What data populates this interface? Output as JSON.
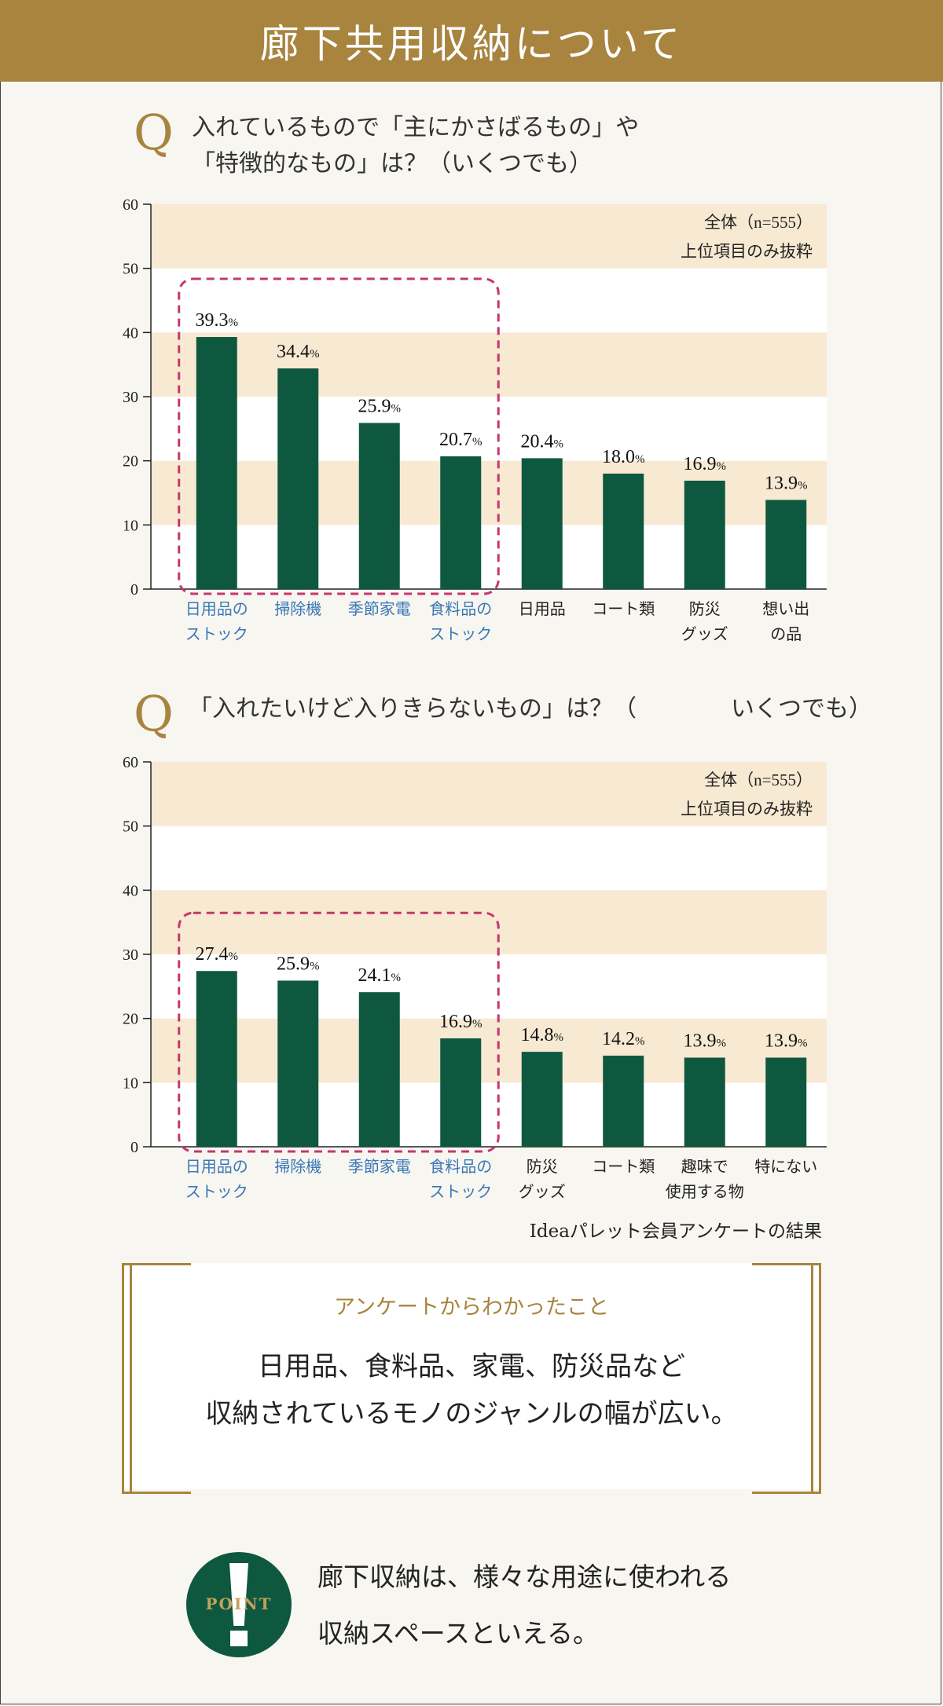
{
  "header": {
    "title": "廊下共用収納について"
  },
  "q1": {
    "mark": "Q",
    "line1": "入れているもので「主にかさばるもの」や",
    "line2": "「特徴的なもの」は？（いくつでも）"
  },
  "q2": {
    "mark": "Q",
    "text": "「入れたいけど入りきらないもの」は？（　　　　いくつでも）"
  },
  "chart_data": [
    {
      "type": "bar",
      "title": "入れているもので「主にかさばるもの」や「特徴的なもの」は？（いくつでも）",
      "categories": [
        "日用品の\nストック",
        "掃除機",
        "季節家電",
        "食料品の\nストック",
        "日用品",
        "コート類",
        "防災\nグッズ",
        "想い出\nの品"
      ],
      "values": [
        39.3,
        34.4,
        25.9,
        20.7,
        20.4,
        18.0,
        16.9,
        13.9
      ],
      "value_labels": [
        "39.3",
        "34.4",
        "25.9",
        "20.7",
        "20.4",
        "18.0",
        "16.9",
        "13.9"
      ],
      "unit": "%",
      "ylim": [
        0,
        60
      ],
      "yticks": [
        0,
        10,
        20,
        30,
        40,
        50,
        60
      ],
      "highlight": [
        0,
        1,
        2,
        3
      ],
      "notes": [
        "全体（n=555）",
        "上位項目のみ抜粋"
      ],
      "colors": {
        "bar": "#0f5840",
        "band": "#f8e9d2",
        "highlight_label": "#3a78b5",
        "dash": "#c4376f"
      }
    },
    {
      "type": "bar",
      "title": "「入れたいけど入りきらないもの」は？（いくつでも）",
      "categories": [
        "日用品の\nストック",
        "掃除機",
        "季節家電",
        "食料品の\nストック",
        "防災\nグッズ",
        "コート類",
        "趣味で\n使用する物",
        "特にない"
      ],
      "values": [
        27.4,
        25.9,
        24.1,
        16.9,
        14.8,
        14.2,
        13.9,
        13.9
      ],
      "value_labels": [
        "27.4",
        "25.9",
        "24.1",
        "16.9",
        "14.8",
        "14.2",
        "13.9",
        "13.9"
      ],
      "unit": "%",
      "ylim": [
        0,
        60
      ],
      "yticks": [
        0,
        10,
        20,
        30,
        40,
        50,
        60
      ],
      "highlight": [
        0,
        1,
        2,
        3
      ],
      "notes": [
        "全体（n=555）",
        "上位項目のみ抜粋"
      ],
      "colors": {
        "bar": "#0f5840",
        "band": "#f8e9d2",
        "highlight_label": "#3a78b5",
        "dash": "#c4376f"
      }
    }
  ],
  "source": "Ideaパレット会員アンケートの結果",
  "summary": {
    "title": "アンケートからわかったこと",
    "line1": "日用品、食料品、家電、防災品など",
    "line2": "収納されているモノのジャンルの幅が広い。"
  },
  "point": {
    "badge": "POINT",
    "line1": "廊下収納は、様々な用途に使われる",
    "line2": "収納スペースといえる。"
  }
}
